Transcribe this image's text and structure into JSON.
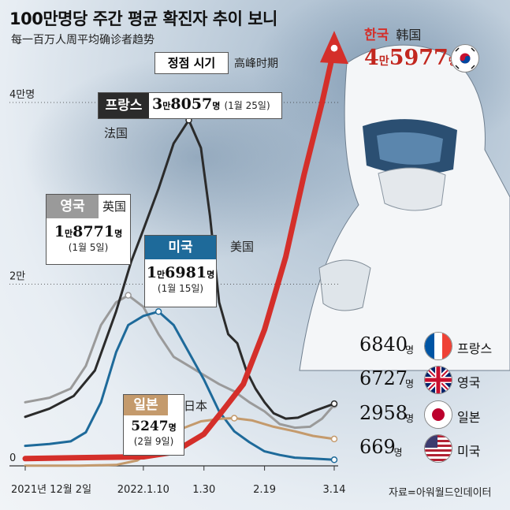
{
  "title": "100만명당 주간 평균 확진자 추이 보니",
  "subtitle": "每一百万人周平均确诊者趋势",
  "peak_label": "정점 시기",
  "peak_label_cn": "高峰时期",
  "source": "자료=아워월드인데이터",
  "y_ticks": [
    {
      "v": 0,
      "label": "0"
    },
    {
      "v": 20000,
      "label": "2만"
    },
    {
      "v": 40000,
      "label": "4만명"
    }
  ],
  "x_ticks": [
    {
      "d": "2021-12-02",
      "label": "2021년 12월 2일"
    },
    {
      "d": "2022-01-10",
      "label": "2022.1.10"
    },
    {
      "d": "2022-01-30",
      "label": "1.30"
    },
    {
      "d": "2022-02-19",
      "label": "2.19"
    },
    {
      "d": "2022-03-14",
      "label": "3.14"
    }
  ],
  "callouts": {
    "korea": {
      "name": "한국",
      "name_cn": "韩国",
      "value_main": "4",
      "value_unit1": "만",
      "value_rest": "5977",
      "value_unit2": "명"
    },
    "france": {
      "name": "프랑스",
      "name_cn": "法国",
      "value_main": "3",
      "value_unit1": "만",
      "value_rest": "8057",
      "value_unit2": "명",
      "date": "(1월 25일)"
    },
    "uk": {
      "name": "영국",
      "name_cn": "英国",
      "value_main": "1",
      "value_unit1": "만",
      "value_rest": "8771",
      "value_unit2": "명",
      "date": "(1월 5일)"
    },
    "us": {
      "name": "미국",
      "name_cn": "美国",
      "value_main": "1",
      "value_unit1": "만",
      "value_rest": "6981",
      "value_unit2": "명",
      "date": "(1월 15일)"
    },
    "japan": {
      "name": "일본",
      "name_cn": "日本",
      "value_rest": "5247",
      "value_unit2": "명",
      "date": "(2월 9일)"
    }
  },
  "latest": [
    {
      "value": "6840",
      "unit": "명",
      "name": "프랑스",
      "flag": "france"
    },
    {
      "value": "6727",
      "unit": "명",
      "name": "영국",
      "flag": "uk"
    },
    {
      "value": "2958",
      "unit": "명",
      "name": "일본",
      "flag": "japan"
    },
    {
      "value": "669",
      "unit": "명",
      "name": "미국",
      "flag": "us"
    }
  ],
  "colors": {
    "korea": "#d42f2a",
    "france": "#2b2b2b",
    "uk": "#9a9a9a",
    "us": "#1e6a9a",
    "japan": "#c49a6c"
  },
  "chart_data": {
    "type": "line",
    "title": "100만명당 주간 평균 확진자 추이 보니",
    "x_start": "2021-12-02",
    "x_end": "2022-03-14",
    "ylim": [
      0,
      40000
    ],
    "series": [
      {
        "name": "한국",
        "key": "korea",
        "points": [
          [
            "2021-12-02",
            800
          ],
          [
            "2021-12-20",
            900
          ],
          [
            "2022-01-10",
            1000
          ],
          [
            "2022-01-20",
            1500
          ],
          [
            "2022-01-30",
            3500
          ],
          [
            "2022-02-05",
            6000
          ],
          [
            "2022-02-12",
            9000
          ],
          [
            "2022-02-19",
            15000
          ],
          [
            "2022-02-26",
            23000
          ],
          [
            "2022-03-04",
            32000
          ],
          [
            "2022-03-10",
            40000
          ],
          [
            "2022-03-14",
            45977
          ]
        ]
      },
      {
        "name": "프랑스",
        "key": "france",
        "points": [
          [
            "2021-12-02",
            5400
          ],
          [
            "2021-12-10",
            6300
          ],
          [
            "2021-12-18",
            7700
          ],
          [
            "2021-12-25",
            10500
          ],
          [
            "2022-01-01",
            17000
          ],
          [
            "2022-01-06",
            22500
          ],
          [
            "2022-01-10",
            26000
          ],
          [
            "2022-01-15",
            30500
          ],
          [
            "2022-01-20",
            35500
          ],
          [
            "2022-01-25",
            38057
          ],
          [
            "2022-01-29",
            35000
          ],
          [
            "2022-02-01",
            27500
          ],
          [
            "2022-02-04",
            18000
          ],
          [
            "2022-02-07",
            14500
          ],
          [
            "2022-02-10",
            13500
          ],
          [
            "2022-02-13",
            10500
          ],
          [
            "2022-02-16",
            8500
          ],
          [
            "2022-02-19",
            7000
          ],
          [
            "2022-02-22",
            5800
          ],
          [
            "2022-02-26",
            5200
          ],
          [
            "2022-03-02",
            5300
          ],
          [
            "2022-03-07",
            6000
          ],
          [
            "2022-03-14",
            6840
          ]
        ]
      },
      {
        "name": "영국",
        "key": "uk",
        "points": [
          [
            "2021-12-02",
            7000
          ],
          [
            "2021-12-10",
            7500
          ],
          [
            "2021-12-17",
            8500
          ],
          [
            "2021-12-22",
            11000
          ],
          [
            "2021-12-27",
            15500
          ],
          [
            "2022-01-01",
            18000
          ],
          [
            "2022-01-05",
            18771
          ],
          [
            "2022-01-10",
            17500
          ],
          [
            "2022-01-15",
            14500
          ],
          [
            "2022-01-20",
            12000
          ],
          [
            "2022-01-25",
            11000
          ],
          [
            "2022-01-30",
            10000
          ],
          [
            "2022-02-04",
            9000
          ],
          [
            "2022-02-09",
            8200
          ],
          [
            "2022-02-14",
            7000
          ],
          [
            "2022-02-19",
            6000
          ],
          [
            "2022-02-24",
            4600
          ],
          [
            "2022-03-01",
            4200
          ],
          [
            "2022-03-06",
            4300
          ],
          [
            "2022-03-10",
            5200
          ],
          [
            "2022-03-14",
            6727
          ]
        ]
      },
      {
        "name": "미국",
        "key": "us",
        "points": [
          [
            "2021-12-02",
            2200
          ],
          [
            "2021-12-10",
            2400
          ],
          [
            "2021-12-17",
            2700
          ],
          [
            "2021-12-22",
            3700
          ],
          [
            "2021-12-27",
            7000
          ],
          [
            "2022-01-01",
            12500
          ],
          [
            "2022-01-05",
            15500
          ],
          [
            "2022-01-10",
            16500
          ],
          [
            "2022-01-15",
            16981
          ],
          [
            "2022-01-20",
            15500
          ],
          [
            "2022-01-25",
            12500
          ],
          [
            "2022-01-30",
            9500
          ],
          [
            "2022-02-04",
            6000
          ],
          [
            "2022-02-09",
            3800
          ],
          [
            "2022-02-14",
            2600
          ],
          [
            "2022-02-19",
            1600
          ],
          [
            "2022-02-24",
            1200
          ],
          [
            "2022-03-01",
            900
          ],
          [
            "2022-03-07",
            800
          ],
          [
            "2022-03-14",
            669
          ]
        ]
      },
      {
        "name": "일본",
        "key": "japan",
        "points": [
          [
            "2021-12-02",
            20
          ],
          [
            "2021-12-20",
            30
          ],
          [
            "2022-01-01",
            100
          ],
          [
            "2022-01-08",
            600
          ],
          [
            "2022-01-15",
            2200
          ],
          [
            "2022-01-22",
            4000
          ],
          [
            "2022-01-29",
            4900
          ],
          [
            "2022-02-05",
            5200
          ],
          [
            "2022-02-09",
            5247
          ],
          [
            "2022-02-15",
            5000
          ],
          [
            "2022-02-22",
            4300
          ],
          [
            "2022-03-01",
            3800
          ],
          [
            "2022-03-07",
            3300
          ],
          [
            "2022-03-14",
            2958
          ]
        ]
      }
    ]
  }
}
